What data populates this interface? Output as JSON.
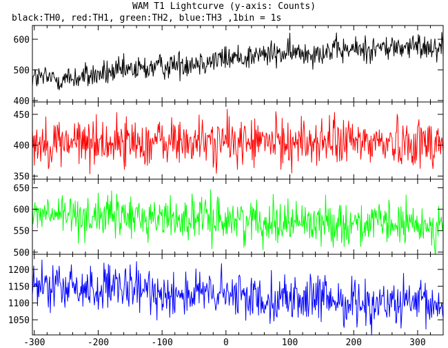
{
  "header": {
    "title": "WAM T1 Lightcurve (y-axis: Counts)",
    "subtitle": "black:TH0, red:TH1, green:TH2, blue:TH3 ,1bin = 1s"
  },
  "chart_data": {
    "type": "line",
    "title": "WAM T1 Lightcurve (y-axis: Counts)",
    "subtitle": "black:TH0, red:TH1, green:TH2, blue:TH3 ,1bin = 1s",
    "xlabel": "",
    "ylabel": "Counts",
    "x_range": [
      -303,
      340
    ],
    "x_ticks": [
      -300,
      -200,
      -100,
      0,
      100,
      200,
      300
    ],
    "bin_seconds": 1,
    "grid": false,
    "legend": "text",
    "panels": [
      {
        "name": "TH0",
        "color": "#000000",
        "ylim": [
          395,
          645
        ],
        "y_ticks": [
          400,
          500,
          600
        ],
        "trend": [
          [
            -303,
            475
          ],
          [
            -250,
            470
          ],
          [
            -150,
            498
          ],
          [
            -50,
            525
          ],
          [
            50,
            548
          ],
          [
            150,
            560
          ],
          [
            250,
            572
          ],
          [
            340,
            578
          ]
        ],
        "noise": 22
      },
      {
        "name": "TH1",
        "color": "#ff0000",
        "ylim": [
          345,
          470
        ],
        "y_ticks": [
          350,
          400,
          450
        ],
        "trend": [
          [
            -303,
            405
          ],
          [
            340,
            405
          ]
        ],
        "noise": 20
      },
      {
        "name": "TH2",
        "color": "#00ff00",
        "ylim": [
          495,
          670
        ],
        "y_ticks": [
          500,
          550,
          600,
          650
        ],
        "trend": [
          [
            -303,
            588
          ],
          [
            -100,
            580
          ],
          [
            100,
            572
          ],
          [
            340,
            560
          ]
        ],
        "noise": 25
      },
      {
        "name": "TH3",
        "color": "#0000ff",
        "ylim": [
          1005,
          1245
        ],
        "y_ticks": [
          1050,
          1100,
          1150,
          1200
        ],
        "trend": [
          [
            -303,
            1148
          ],
          [
            -150,
            1138
          ],
          [
            0,
            1122
          ],
          [
            150,
            1110
          ],
          [
            250,
            1098
          ],
          [
            340,
            1090
          ]
        ],
        "noise": 35
      }
    ]
  }
}
